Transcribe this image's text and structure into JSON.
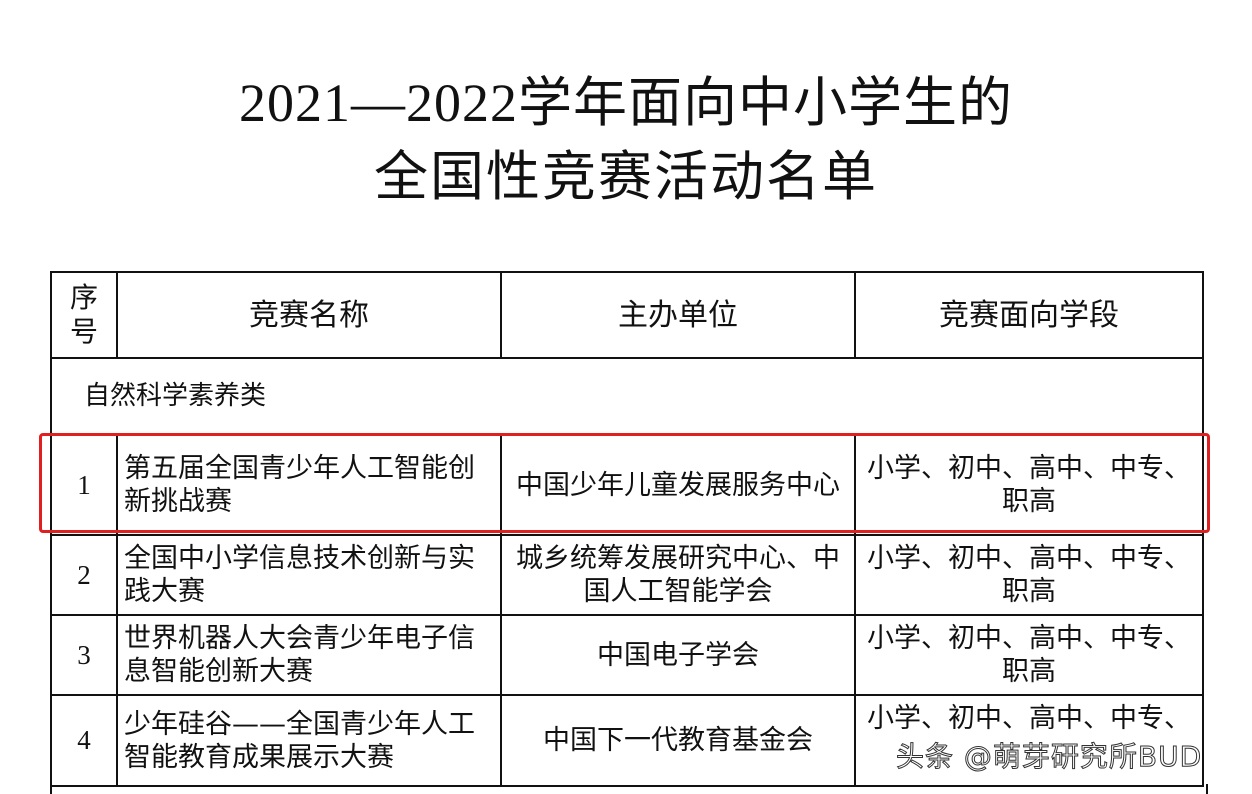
{
  "title_line1": "2021—2022学年面向中小学生的",
  "title_line2": "全国性竞赛活动名单",
  "table": {
    "headers": [
      "序号",
      "竞赛名称",
      "主办单位",
      "竞赛面向学段"
    ],
    "category": "自然科学素养类",
    "rows": [
      {
        "no": "1",
        "name": "第五届全国青少年人工智能创新挑战赛",
        "org": "中国少年儿童发展服务中心",
        "level": "小学、初中、高中、中专、职高"
      },
      {
        "no": "2",
        "name": "全国中小学信息技术创新与实践大赛",
        "org": "城乡统筹发展研究中心、中国人工智能学会",
        "level": "小学、初中、高中、中专、职高"
      },
      {
        "no": "3",
        "name": "世界机器人大会青少年电子信息智能创新大赛",
        "org": "中国电子学会",
        "level": "小学、初中、高中、中专、职高"
      },
      {
        "no": "4",
        "name": "少年硅谷——全国青少年人工智能教育成果展示大赛",
        "org": "中国下一代教育基金会",
        "level": "小学、初中、高中、中专、"
      }
    ]
  },
  "highlight_color": "#e02020",
  "watermark": "头条 @萌芽研究所BUD"
}
